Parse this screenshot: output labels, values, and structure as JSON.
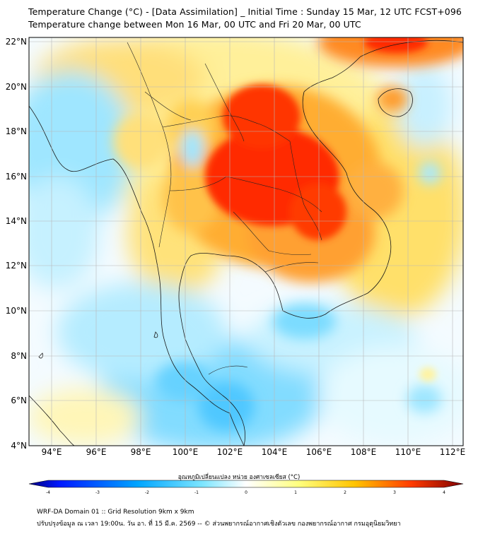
{
  "header": {
    "title_line1": "Temperature Change (°C) - [Data Assimilation] _ Initial Time : Sunday 15 Mar, 12 UTC FCST+096",
    "title_line2": "Temperature change between Mon 16 Mar, 00 UTC and Fri 20 Mar, 00 UTC"
  },
  "map": {
    "lat_labels": [
      "22°N",
      "20°N",
      "18°N",
      "16°N",
      "14°N",
      "12°N",
      "10°N",
      "8°N",
      "6°N",
      "4°N"
    ],
    "lon_labels": [
      "94°E",
      "96°E",
      "98°E",
      "100°E",
      "102°E",
      "104°E",
      "106°E",
      "108°E",
      "110°E",
      "112°E"
    ],
    "field": "temperature_change",
    "extent": {
      "lon_min": 93,
      "lon_max": 112.5,
      "lat_min": 4,
      "lat_max": 22.3
    },
    "hot_regions": [
      "Northeast Thailand",
      "Laos",
      "Northern Cambodia",
      "Hainan"
    ],
    "cold_regions": [
      "Andaman Sea",
      "Gulf of Thailand",
      "Malay Peninsula",
      "South China Sea"
    ]
  },
  "colorbar": {
    "label": "อุณหภูมิเปลี่ยนแปลง หน่วย องศาเซลเซียส (°C)",
    "ticks": [
      "-4",
      "-3",
      "-2",
      "-1",
      "0",
      "1",
      "2",
      "3",
      "4"
    ],
    "stops": [
      "#00007f",
      "#0019ff",
      "#00a5ff",
      "#7ee6ff",
      "#ffffff",
      "#ffff80",
      "#ffc400",
      "#ff3c00",
      "#7f0000"
    ]
  },
  "footer": {
    "line1": "WRF-DA Domain 01 :: Grid Resolution 9km x 9km",
    "line2": "ปรับปรุงข้อมูล ณ เวลา 19:00น. วัน อา. ที่ 15 มี.ค. 2569 -- © ส่วนพยากรณ์อากาศเชิงตัวเลข กองพยากรณ์อากาศ กรมอุตุนิยมวิทยา"
  }
}
